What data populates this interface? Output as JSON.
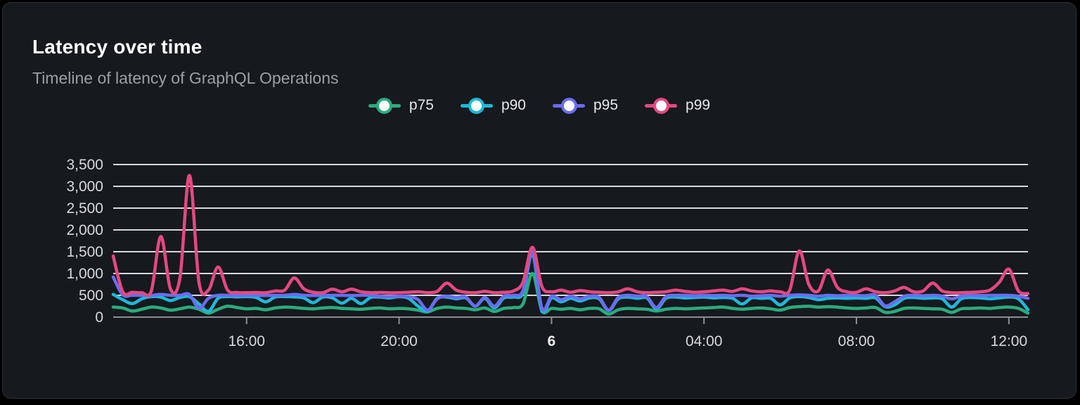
{
  "panel": {
    "title": "Latency over time",
    "subtitle": "Timeline of latency of GraphQL Operations"
  },
  "legend": {
    "items": [
      {
        "label": "p75",
        "color": "#2aab7c",
        "icon": "line-dot-marker-icon"
      },
      {
        "label": "p90",
        "color": "#1db9d8",
        "icon": "line-dot-marker-icon"
      },
      {
        "label": "p95",
        "color": "#6a6cf0",
        "icon": "line-dot-marker-icon"
      },
      {
        "label": "p99",
        "color": "#e5487f",
        "icon": "line-dot-marker-icon"
      }
    ]
  },
  "colors": {
    "page_background": "#000000",
    "panel_background": "#16191e",
    "panel_border": "#2e3238",
    "title": "#ffffff",
    "subtitle": "#9aa0a8",
    "gridline": "#e6e8f0",
    "zero_axis": "#8b8e94",
    "tick_label": "#d8d9dc",
    "bold_tick_label": "#eceded"
  },
  "chart_data": {
    "type": "line",
    "title": "Latency over time",
    "xlabel": "",
    "ylabel": "",
    "ylim": [
      0,
      3500
    ],
    "grid": "horizontal",
    "legend_position": "top-center",
    "x_start": "12:30",
    "x_step_minutes": 15,
    "x_points": 97,
    "y_ticks": [
      {
        "label": "0",
        "value": 0
      },
      {
        "label": "500",
        "value": 500
      },
      {
        "label": "1,000",
        "value": 1000
      },
      {
        "label": "1,500",
        "value": 1500
      },
      {
        "label": "2,000",
        "value": 2000
      },
      {
        "label": "2,500",
        "value": 2500
      },
      {
        "label": "3,000",
        "value": 3000
      },
      {
        "label": "3,500",
        "value": 3500
      }
    ],
    "x_ticks": [
      {
        "label": "16:00",
        "index": 14,
        "bold": false
      },
      {
        "label": "20:00",
        "index": 30,
        "bold": false
      },
      {
        "label": "6",
        "index": 46,
        "bold": true
      },
      {
        "label": "04:00",
        "index": 62,
        "bold": false
      },
      {
        "label": "08:00",
        "index": 78,
        "bold": false
      },
      {
        "label": "12:00",
        "index": 94,
        "bold": false
      }
    ],
    "series": [
      {
        "name": "p75",
        "color": "#2aab7c",
        "values": [
          230,
          210,
          140,
          180,
          230,
          210,
          160,
          190,
          230,
          180,
          90,
          180,
          250,
          220,
          190,
          200,
          170,
          210,
          230,
          220,
          200,
          190,
          210,
          220,
          200,
          190,
          180,
          200,
          210,
          190,
          200,
          190,
          160,
          120,
          200,
          230,
          210,
          200,
          170,
          210,
          130,
          200,
          220,
          300,
          1000,
          150,
          200,
          180,
          200,
          170,
          200,
          190,
          70,
          170,
          200,
          190,
          180,
          140,
          180,
          200,
          190,
          200,
          210,
          220,
          230,
          200,
          180,
          200,
          210,
          190,
          160,
          220,
          240,
          250,
          230,
          240,
          230,
          210,
          200,
          210,
          220,
          110,
          130,
          200,
          210,
          200,
          190,
          180,
          110,
          190,
          200,
          210,
          200,
          220,
          230,
          200,
          90
        ]
      },
      {
        "name": "p90",
        "color": "#1db9d8",
        "values": [
          520,
          400,
          310,
          420,
          470,
          460,
          380,
          450,
          470,
          300,
          130,
          430,
          470,
          465,
          470,
          450,
          350,
          460,
          470,
          465,
          440,
          330,
          460,
          440,
          320,
          430,
          310,
          450,
          460,
          440,
          470,
          430,
          250,
          140,
          430,
          460,
          420,
          440,
          250,
          430,
          210,
          440,
          460,
          550,
          1450,
          130,
          440,
          350,
          430,
          370,
          440,
          420,
          150,
          420,
          460,
          430,
          440,
          190,
          430,
          460,
          440,
          450,
          460,
          440,
          450,
          430,
          300,
          440,
          430,
          430,
          280,
          440,
          470,
          450,
          400,
          430,
          440,
          430,
          440,
          430,
          440,
          240,
          280,
          430,
          450,
          430,
          440,
          420,
          230,
          420,
          450,
          440,
          420,
          440,
          460,
          420,
          170
        ]
      },
      {
        "name": "p95",
        "color": "#6a6cf0",
        "values": [
          920,
          510,
          500,
          500,
          500,
          520,
          500,
          500,
          520,
          200,
          430,
          500,
          500,
          495,
          500,
          500,
          495,
          500,
          500,
          520,
          500,
          495,
          500,
          500,
          500,
          495,
          500,
          500,
          480,
          470,
          480,
          470,
          400,
          160,
          420,
          480,
          450,
          460,
          250,
          450,
          250,
          480,
          500,
          600,
          1500,
          200,
          480,
          400,
          480,
          420,
          480,
          450,
          160,
          450,
          500,
          480,
          470,
          220,
          470,
          500,
          500,
          490,
          500,
          495,
          500,
          490,
          500,
          480,
          490,
          500,
          480,
          500,
          510,
          500,
          480,
          500,
          490,
          500,
          495,
          490,
          500,
          260,
          350,
          480,
          500,
          490,
          500,
          480,
          420,
          480,
          500,
          495,
          500,
          500,
          500,
          480,
          430
        ]
      },
      {
        "name": "p99",
        "color": "#e5487f",
        "values": [
          1400,
          580,
          570,
          560,
          600,
          1850,
          650,
          900,
          3250,
          800,
          620,
          1150,
          620,
          565,
          560,
          565,
          560,
          600,
          620,
          900,
          650,
          570,
          560,
          640,
          580,
          640,
          580,
          560,
          565,
          560,
          560,
          570,
          580,
          560,
          590,
          780,
          620,
          570,
          560,
          590,
          560,
          570,
          600,
          800,
          1600,
          700,
          580,
          620,
          570,
          610,
          580,
          570,
          560,
          580,
          650,
          580,
          560,
          570,
          580,
          620,
          590,
          570,
          580,
          600,
          620,
          590,
          650,
          600,
          580,
          600,
          580,
          620,
          1520,
          750,
          600,
          1080,
          680,
          580,
          570,
          650,
          580,
          560,
          600,
          680,
          580,
          600,
          780,
          600,
          560,
          560,
          570,
          580,
          620,
          800,
          1100,
          600,
          540
        ]
      }
    ]
  }
}
